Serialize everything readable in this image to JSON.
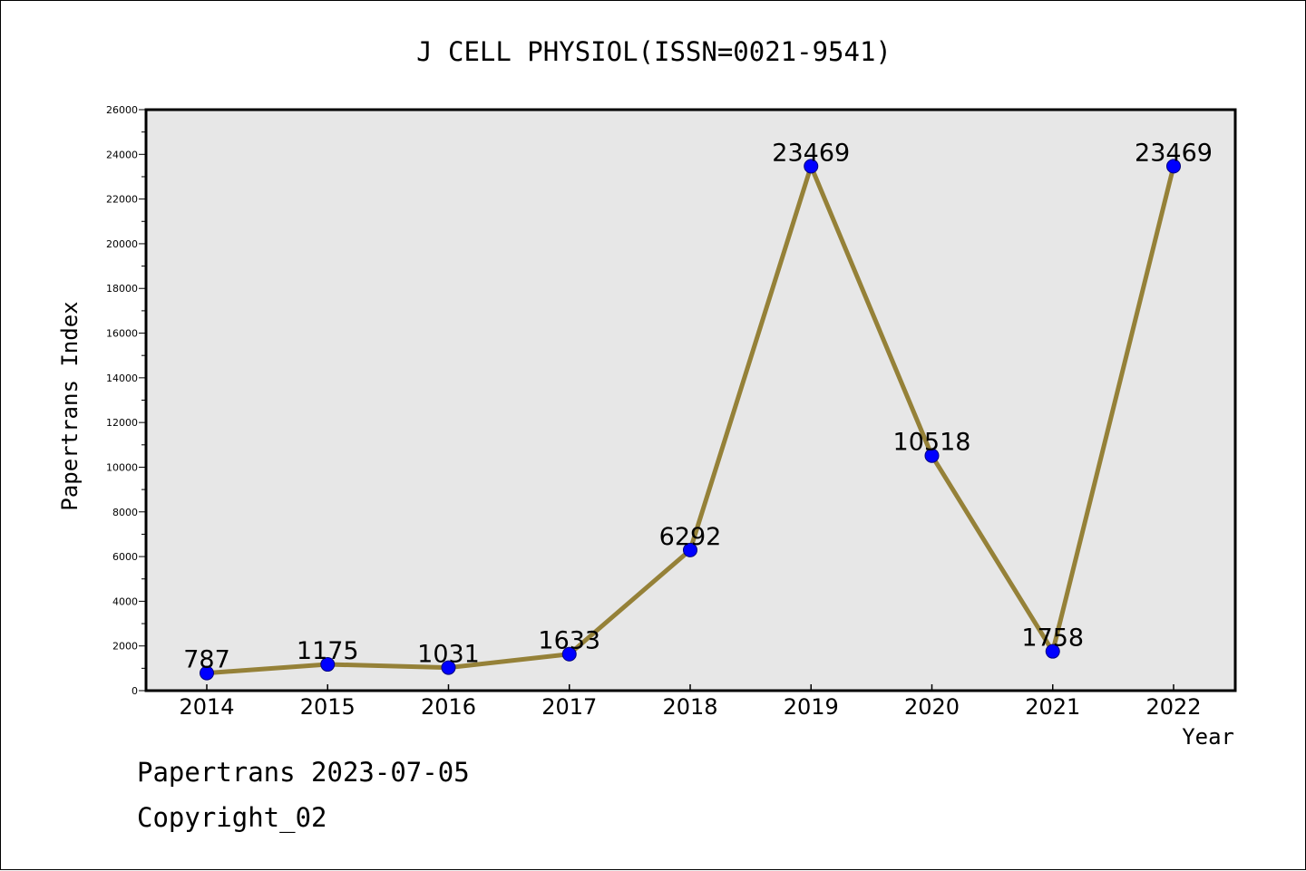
{
  "colors": {
    "background": "#ffffff",
    "plot_background": "#e7e7e7",
    "line": "#958138",
    "marker": "#0000ff",
    "marker_edge": "#000080",
    "text": "#000000"
  },
  "chart_data": {
    "type": "line",
    "title": "J CELL PHYSIOL(ISSN=0021-9541)",
    "xlabel": "Year",
    "ylabel": "Papertrans Index",
    "categories": [
      "2014",
      "2015",
      "2016",
      "2017",
      "2018",
      "2019",
      "2020",
      "2021",
      "2022"
    ],
    "series": [
      {
        "values": [
          787,
          1175,
          1031,
          1633,
          6292,
          23469,
          10518,
          1758,
          23469
        ]
      }
    ],
    "data_labels": [
      "787",
      "1175",
      "1031",
      "1633",
      "6292",
      "23469",
      "10518",
      "1758",
      "23469"
    ],
    "ylim": [
      0,
      26000
    ],
    "yticks": [
      0,
      2000,
      4000,
      6000,
      8000,
      10000,
      12000,
      14000,
      16000,
      18000,
      20000,
      22000,
      24000,
      26000
    ],
    "ytick_labels": [
      "0",
      "2000",
      "4000",
      "6000",
      "8000",
      "10000",
      "12000",
      "14000",
      "16000",
      "18000",
      "20000",
      "22000",
      "24000",
      "26000"
    ],
    "grid": false,
    "legend": "none"
  },
  "footer": {
    "source": "Papertrans 2023-07-05",
    "copyright": "Copyright_02"
  }
}
